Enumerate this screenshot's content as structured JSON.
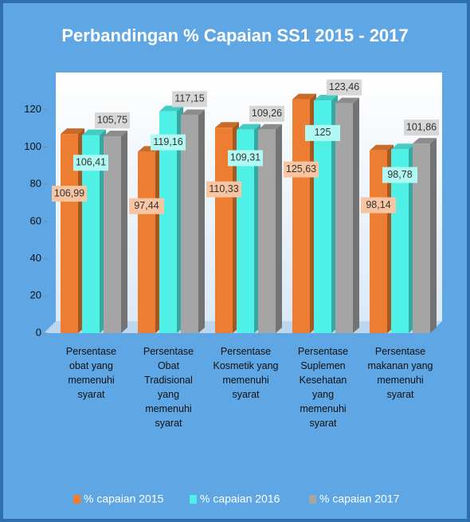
{
  "chart_data": {
    "type": "bar3d",
    "title": "Perbandingan % Capaian SS1 2015 - 2017",
    "categories": [
      "Persentase obat yang memenuhi syarat",
      "Persentase Obat Tradisional yang memenuhi syarat",
      "Persentase Kosmetik yang memenuhi syarat",
      "Persentase Suplemen Kesehatan yang memenuhi syarat",
      "Persentase makanan yang memenuhi syarat"
    ],
    "series": [
      {
        "name": "% capaian 2015",
        "color": "#ed7d31",
        "values": [
          106.99,
          97.44,
          110.33,
          125.63,
          98.14
        ],
        "value_labels": [
          "106,99",
          "97,44",
          "110,33",
          "125,63",
          "98,14"
        ]
      },
      {
        "name": "% capaian 2016",
        "color": "#4ff0e6",
        "values": [
          106.41,
          119.16,
          109.31,
          125,
          98.78
        ],
        "value_labels": [
          "106,41",
          "119,16",
          "109,31",
          "125",
          "98,78"
        ]
      },
      {
        "name": "% capaian 2017",
        "color": "#a5a5a5",
        "values": [
          105.75,
          117.15,
          109.26,
          123.46,
          101.86
        ],
        "value_labels": [
          "105,75",
          "117,15",
          "109,26",
          "123,46",
          "101,86"
        ]
      }
    ],
    "ylim": [
      0,
      140
    ],
    "yticks": [
      0,
      20,
      40,
      60,
      80,
      100,
      120
    ],
    "grid": false,
    "legend": "bottom"
  }
}
